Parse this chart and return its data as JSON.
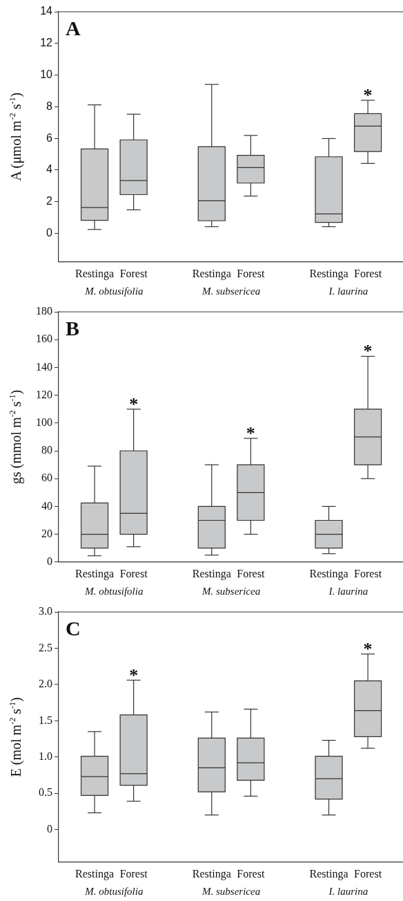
{
  "chart_data": [
    {
      "type": "box",
      "title": "A",
      "ylabel": "A (μmol m$^{-2}$ s$^{-1}$)",
      "categories": [
        "Restinga",
        "Forest",
        "Restinga",
        "Forest",
        "Restinga",
        "Forest"
      ],
      "color": "#c8c9cb",
      "grid": false,
      "ylim": [
        -1.8,
        14
      ],
      "yticks": [
        0,
        2,
        4,
        6,
        8,
        10,
        12,
        14
      ],
      "boxes": [
        {
          "low": 0.25,
          "q1": 0.83,
          "median": 1.64,
          "q3": 5.34,
          "high": 8.12
        },
        {
          "low": 1.49,
          "q1": 2.45,
          "median": 3.34,
          "q3": 5.91,
          "high": 7.53
        },
        {
          "low": 0.43,
          "q1": 0.8,
          "median": 2.06,
          "q3": 5.48,
          "high": 9.41
        },
        {
          "low": 2.36,
          "q1": 3.18,
          "median": 4.16,
          "q3": 4.93,
          "high": 6.19
        },
        {
          "low": 0.43,
          "q1": 0.7,
          "median": 1.23,
          "q3": 4.84,
          "high": 5.99
        },
        {
          "low": 4.42,
          "q1": 5.17,
          "median": 6.78,
          "q3": 7.56,
          "high": 8.41
        }
      ],
      "annotations": [
        "M. obtusifolia",
        "M. subsericea",
        "I. laurina",
        {
          "text": "*",
          "y": 8.41
        }
      ]
    },
    {
      "type": "box",
      "title": "B",
      "ylabel": "gs (mmol m$^{-2}$ s$^{-1}$)",
      "categories": [
        "Restinga",
        "Forest",
        "Restinga",
        "Forest",
        "Restinga",
        "Forest"
      ],
      "color": "#c8c9cb",
      "grid": false,
      "ylim": [
        0,
        180
      ],
      "yticks": [
        0,
        20,
        40,
        60,
        80,
        100,
        120,
        140,
        160,
        180
      ],
      "boxes": [
        {
          "low": 4.5,
          "q1": 10,
          "median": 20,
          "q3": 42.5,
          "high": 69
        },
        {
          "low": 11,
          "q1": 20,
          "median": 35,
          "q3": 80,
          "high": 110
        },
        {
          "low": 5,
          "q1": 10,
          "median": 30,
          "q3": 40,
          "high": 70
        },
        {
          "low": 20,
          "q1": 30,
          "median": 50,
          "q3": 70,
          "high": 89
        },
        {
          "low": 6,
          "q1": 10,
          "median": 20,
          "q3": 30,
          "high": 40
        },
        {
          "low": 60,
          "q1": 70,
          "median": 90,
          "q3": 110,
          "high": 148
        }
      ],
      "annotations": [
        "M. obtusifolia",
        "M. subsericea",
        "I. laurina",
        {
          "text": "*",
          "y": 110
        },
        {
          "text": "*",
          "y": 89
        },
        {
          "text": "*",
          "y": 148
        }
      ]
    },
    {
      "type": "box",
      "title": "C",
      "ylabel": "E (mol m$^{-2}$ s$^{-1}$)",
      "categories": [
        "Restinga",
        "Forest",
        "Restinga",
        "Forest",
        "Restinga",
        "Forest"
      ],
      "color": "#c8c9cb",
      "grid": false,
      "ylim": [
        -0.45,
        3
      ],
      "yticks": [
        0,
        0.5,
        {
          "value": 1,
          "label": "1.0"
        },
        1.5,
        {
          "value": 2,
          "label": "2.0"
        },
        2.5,
        {
          "value": 3,
          "label": "3.0"
        }
      ],
      "boxes": [
        {
          "low": 0.23,
          "q1": 0.47,
          "median": 0.73,
          "q3": 1.01,
          "high": 1.35
        },
        {
          "low": 0.39,
          "q1": 0.61,
          "median": 0.77,
          "q3": 1.58,
          "high": 2.06
        },
        {
          "low": 0.2,
          "q1": 0.52,
          "median": 0.85,
          "q3": 1.26,
          "high": 1.62
        },
        {
          "low": 0.46,
          "q1": 0.68,
          "median": 0.92,
          "q3": 1.26,
          "high": 1.66
        },
        {
          "low": 0.2,
          "q1": 0.42,
          "median": 0.7,
          "q3": 1.01,
          "high": 1.23
        },
        {
          "low": 1.12,
          "q1": 1.28,
          "median": 1.64,
          "q3": 2.05,
          "high": 2.42
        }
      ],
      "annotations": [
        "M. obtusifolia",
        "M. subsericea",
        "I. laurina",
        {
          "text": "*",
          "y": 2.06
        },
        {
          "text": "*",
          "y": 2.42
        }
      ]
    }
  ]
}
